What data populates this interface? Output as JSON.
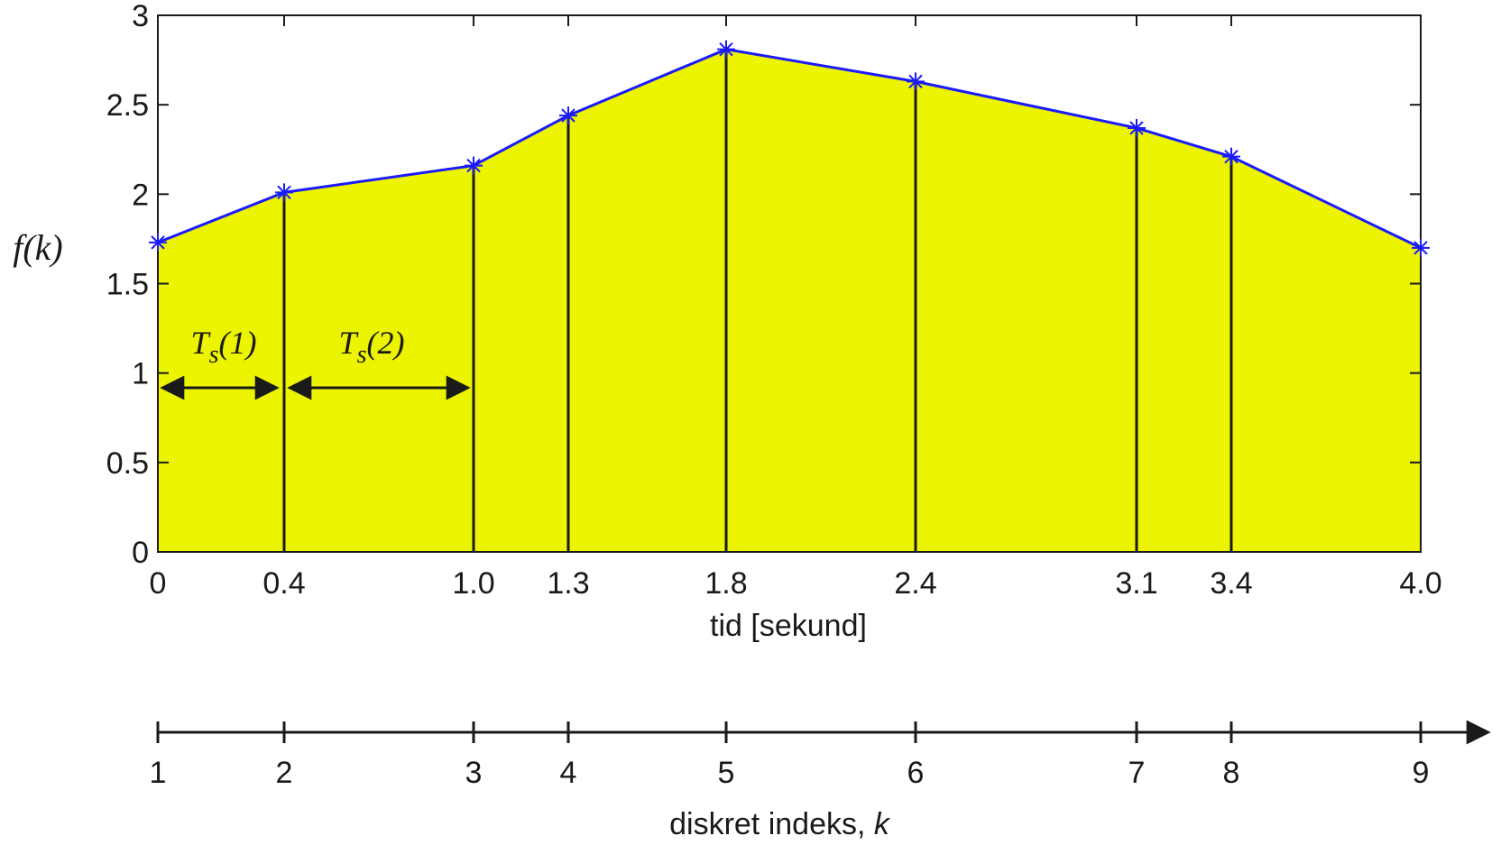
{
  "chart_data": {
    "type": "area",
    "x": [
      0,
      0.4,
      1.0,
      1.3,
      1.8,
      2.4,
      3.1,
      3.4,
      4.0
    ],
    "y": [
      1.73,
      2.01,
      2.16,
      2.44,
      2.81,
      2.63,
      2.37,
      2.21,
      1.7
    ],
    "x_tick_labels": [
      "0",
      "0.4",
      "1.0",
      "1.3",
      "1.8",
      "2.4",
      "3.1",
      "3.4",
      "4.0"
    ],
    "y_ticks": [
      0,
      0.5,
      1,
      1.5,
      2,
      2.5,
      3
    ],
    "y_tick_labels": [
      "0",
      "0.5",
      "1",
      "1.5",
      "2",
      "2.5",
      "3"
    ],
    "xlim": [
      0,
      4.0
    ],
    "ylim": [
      0,
      3
    ],
    "xlabel": "tid [sekund]",
    "ylabel": "f(k)",
    "fill_color": "#ecf400",
    "line_color": "#1a1aff",
    "marker": "asterisk",
    "grid": false,
    "annotations": [
      "Ts(1)",
      "Ts(2)"
    ],
    "index_axis": {
      "label": "diskret indeks, k",
      "values": [
        "1",
        "2",
        "3",
        "4",
        "5",
        "6",
        "7",
        "8",
        "9"
      ]
    }
  }
}
